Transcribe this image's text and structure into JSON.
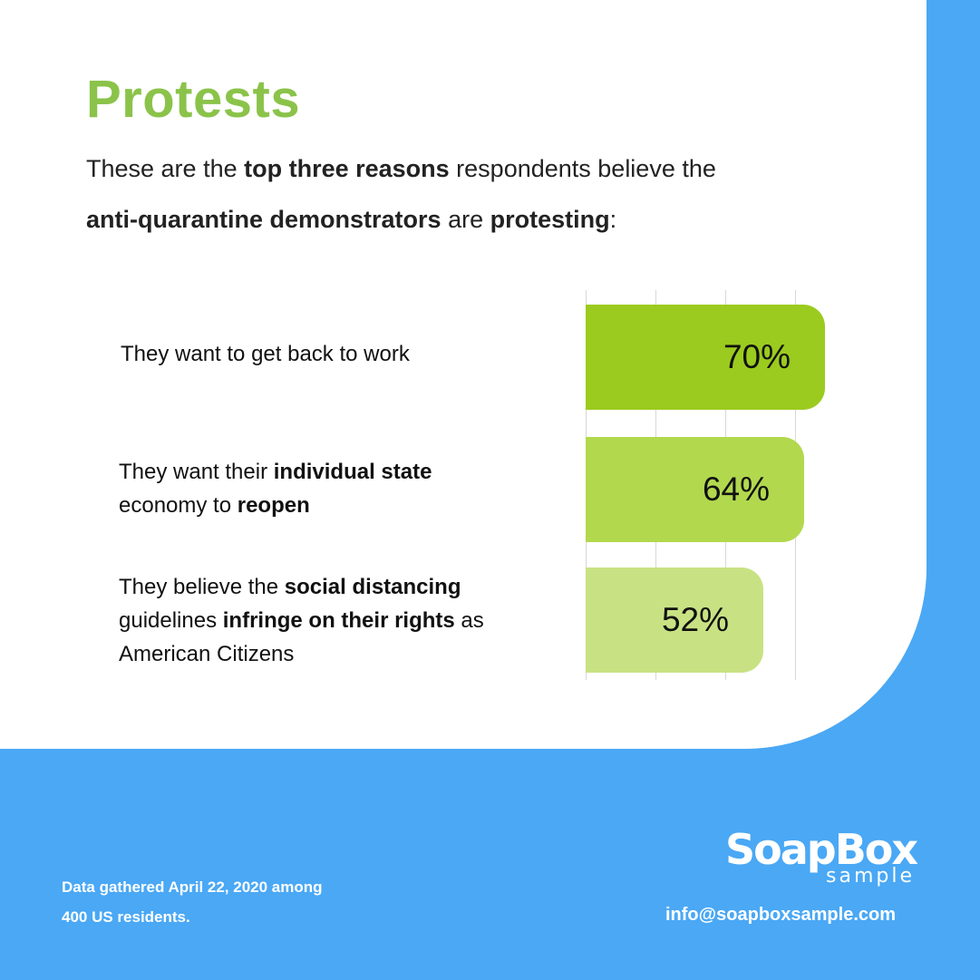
{
  "title": "Protests",
  "subtitle": {
    "l1_a": "These are the ",
    "l1_b": "top three reasons",
    "l1_c": " respondents believe the",
    "l2_a": "anti-quarantine demonstrators",
    "l2_b": " are ",
    "l2_c": "protesting",
    "l2_d": ":"
  },
  "chart_data": {
    "type": "bar",
    "orientation": "horizontal",
    "categories": [
      "They want to get back to work",
      "They want their individual state economy to reopen",
      "They believe the social distancing guidelines infringe on their rights as American Citizens"
    ],
    "values": [
      70,
      64,
      52
    ],
    "value_labels": [
      "70%",
      "64%",
      "52%"
    ],
    "colors": [
      "#9bcb1e",
      "#b2d84e",
      "#c8e283"
    ],
    "grid": true
  },
  "labels": [
    {
      "plain": "They want to get back to work"
    },
    {
      "p1": "They want their ",
      "b1": "individual state",
      "p2": "economy to ",
      "b2": "reopen"
    },
    {
      "p1": "They believe the ",
      "b1": "social distancing",
      "p2": "guidelines ",
      "b2": "infringe on their rights",
      "p3": " as",
      "p4": "American Citizens"
    }
  ],
  "footnote": {
    "line1": "Data gathered April 22, 2020 among",
    "line2": "400 US residents."
  },
  "logo": {
    "main": "SoapBox",
    "sub": "sample"
  },
  "email": "info@soapboxsample.com"
}
